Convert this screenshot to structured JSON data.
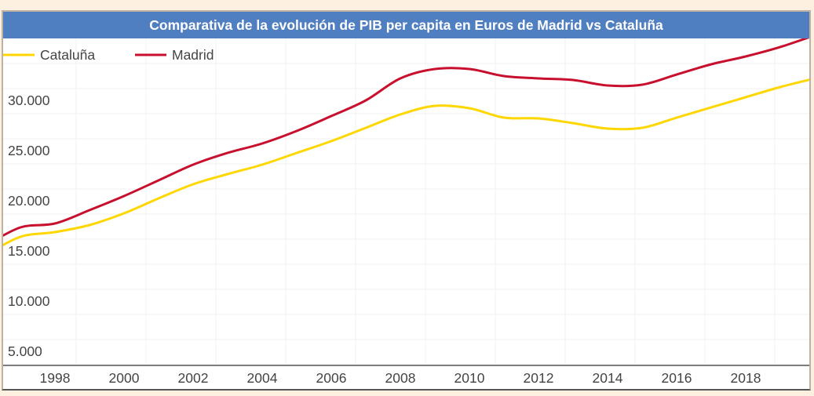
{
  "chart_data": {
    "type": "line",
    "title": "Comparativa de la evolución de PIB per capita en Euros de Madrid vs Cataluña",
    "xlabel": "",
    "ylabel": "",
    "x": [
      1996,
      1997,
      1998,
      1999,
      2000,
      2001,
      2002,
      2003,
      2004,
      2005,
      2006,
      2007,
      2008,
      2009,
      2010,
      2011,
      2012,
      2013,
      2014,
      2015,
      2016,
      2017,
      2018,
      2019,
      2020
    ],
    "x_ticks": [
      "1998",
      "2000",
      "2002",
      "2004",
      "2006",
      "2008",
      "2010",
      "2012",
      "2014",
      "2016",
      "2018"
    ],
    "y_ticks": [
      "5.000",
      "10.000",
      "15.000",
      "20.000",
      "25.000",
      "30.000"
    ],
    "xlim": [
      1996.5,
      2019.8
    ],
    "ylim": [
      3600,
      36300
    ],
    "grid": true,
    "legend_placement": "top-left",
    "series": [
      {
        "name": "Cataluña",
        "color": "#ffd700",
        "values": [
          14609,
          16406,
          16875,
          17578,
          18750,
          20234,
          21641,
          22656,
          23594,
          24766,
          25938,
          27266,
          28594,
          29453,
          29219,
          28281,
          28203,
          27734,
          27188,
          27266,
          28281,
          29297,
          30313,
          31328,
          32188
        ]
      },
      {
        "name": "Madrid",
        "color": "#c8102e",
        "values": [
          15547,
          17344,
          17734,
          19062,
          20469,
          22031,
          23594,
          24766,
          25703,
          26953,
          28438,
          30000,
          32188,
          33125,
          33125,
          32422,
          32188,
          32031,
          31484,
          31563,
          32578,
          33594,
          34375,
          35313,
          36484
        ]
      }
    ]
  }
}
